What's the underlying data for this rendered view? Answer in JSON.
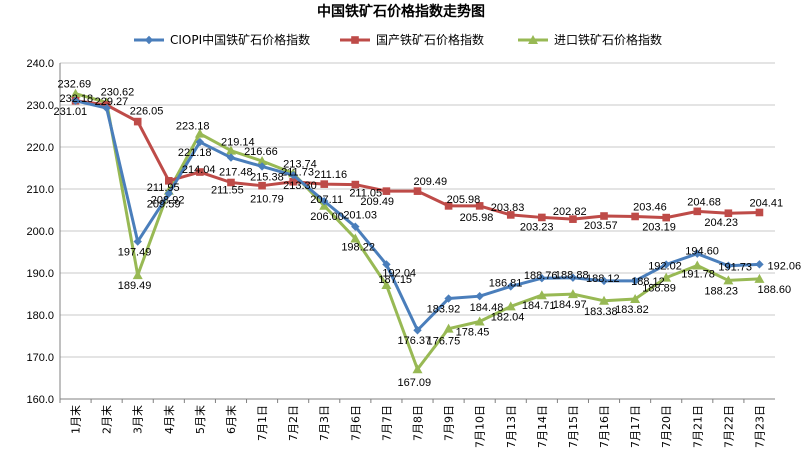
{
  "chart_data": {
    "type": "line",
    "title": "中国铁矿石价格指数走势图",
    "xlabel": "",
    "ylabel": "",
    "ylim": [
      160,
      240
    ],
    "yticks": [
      "160.0",
      "170.0",
      "180.0",
      "190.0",
      "200.0",
      "210.0",
      "220.0",
      "230.0",
      "240.0"
    ],
    "grid": true,
    "legend_position": "top",
    "categories": [
      "1月末",
      "2月末",
      "3月末",
      "4月末",
      "5月末",
      "6月末",
      "7月1日",
      "7月2日",
      "7月3日",
      "7月6日",
      "7月7日",
      "7月8日",
      "7月9日",
      "7月10日",
      "7月13日",
      "7月14日",
      "7月15日",
      "7月16日",
      "7月17日",
      "7月20日",
      "7月21日",
      "7月22日",
      "7月23日"
    ],
    "series": [
      {
        "name": "CIOPI中国铁矿石价格指数",
        "color": "#4a7ebb",
        "marker": "diamond",
        "values": [
          231.01,
          229.27,
          197.49,
          208.92,
          221.18,
          217.48,
          215.38,
          213.3,
          207.11,
          201.03,
          192.04,
          176.37,
          183.92,
          184.48,
          186.81,
          188.76,
          188.88,
          188.12,
          188.12,
          192.02,
          194.6,
          191.73,
          192.06
        ],
        "labels": [
          "231.01",
          "229.27",
          "197.49",
          "208.92",
          "221.18",
          "217.48",
          "215.38",
          "213.30",
          "207.11",
          "201.03",
          "192.04",
          "176.37",
          "183.92",
          "184.48",
          "186.81",
          "188.76",
          "188.88",
          "188.12",
          "188.12",
          "192.02",
          "194.60",
          "191.73",
          "192.06"
        ]
      },
      {
        "name": "国产铁矿石价格指数",
        "color": "#be4b48",
        "marker": "square",
        "values": [
          231.01,
          230.0,
          226.05,
          211.95,
          214.04,
          211.55,
          210.79,
          211.73,
          211.16,
          211.05,
          209.49,
          209.49,
          205.98,
          205.98,
          203.83,
          203.23,
          202.82,
          203.57,
          203.46,
          203.19,
          204.68,
          204.23,
          204.41
        ],
        "labels": [
          "",
          "",
          "226.05",
          "211.95",
          "214.04",
          "211.55",
          "210.79",
          "211.73",
          "211.16",
          "211.05",
          "209.49",
          "209.49",
          "205.98",
          "205.98",
          "203.83",
          "203.23",
          "202.82",
          "203.57",
          "203.46",
          "203.19",
          "204.68",
          "204.23",
          "204.41"
        ]
      },
      {
        "name": "进口铁矿石价格指数",
        "color": "#98b954",
        "marker": "triangle",
        "values": [
          232.69,
          230.62,
          189.49,
          209.59,
          223.18,
          219.14,
          216.66,
          213.74,
          206.0,
          198.22,
          187.15,
          167.09,
          176.75,
          178.45,
          182.04,
          184.71,
          184.97,
          183.38,
          183.82,
          188.89,
          191.78,
          188.23,
          188.6
        ],
        "labels": [
          "232.69",
          "230.62",
          "189.49",
          "209.59",
          "223.18",
          "219.14",
          "216.66",
          "213.74",
          "206.00",
          "198.22",
          "187.15",
          "167.09",
          "176.75",
          "178.45",
          "182.04",
          "184.71",
          "184.97",
          "183.38",
          "183.82",
          "188.89",
          "191.78",
          "188.23",
          "188.60"
        ]
      }
    ],
    "extra_labels": [
      "232.18"
    ]
  }
}
